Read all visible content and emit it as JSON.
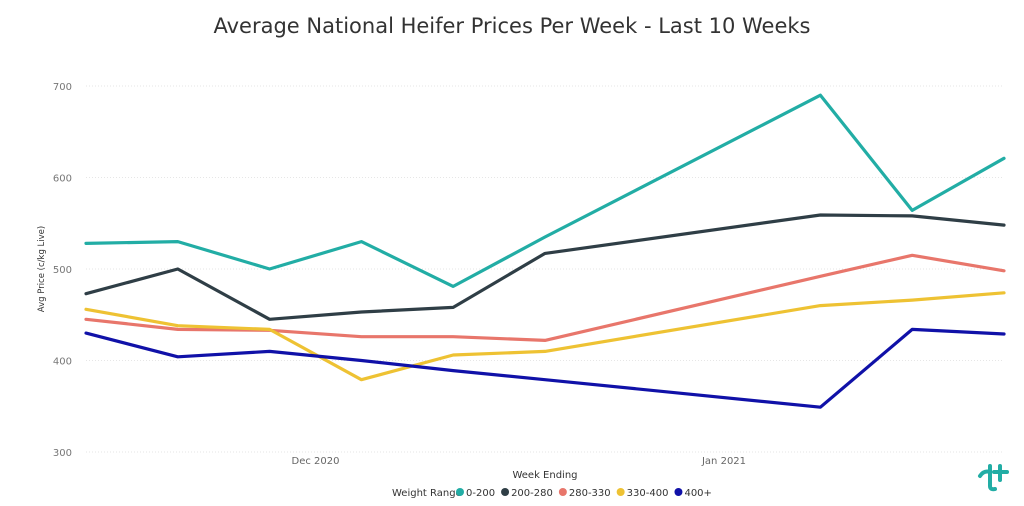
{
  "chart_data": {
    "type": "line",
    "title": "Average National Heifer Prices Per Week - Last 10 Weeks",
    "xlabel": "Week Ending",
    "ylabel": "Avg Price (c/kg Live)",
    "ylim": [
      300,
      700
    ],
    "yticks": [
      "700",
      "600",
      "500",
      "400",
      "300"
    ],
    "xticks": [
      {
        "label": "Dec 2020",
        "x": 2.5
      },
      {
        "label": "Jan 2021",
        "x": 6.95
      }
    ],
    "grid": true,
    "legend_title": "Weight Range",
    "legend_position": "bottom",
    "x": [
      0,
      1,
      2,
      3,
      4,
      5,
      6,
      7,
      8,
      9,
      10
    ],
    "series": [
      {
        "name": "0-200",
        "color": "#22ADA5",
        "points": [
          [
            0,
            528
          ],
          [
            1,
            530
          ],
          [
            2,
            500
          ],
          [
            3,
            530
          ],
          [
            4,
            481
          ],
          [
            5,
            535
          ],
          [
            8,
            690
          ],
          [
            9,
            564
          ],
          [
            10,
            621
          ]
        ]
      },
      {
        "name": "200-280",
        "color": "#2F3E46",
        "points": [
          [
            0,
            473
          ],
          [
            1,
            500
          ],
          [
            2,
            445
          ],
          [
            3,
            453
          ],
          [
            4,
            458
          ],
          [
            5,
            517
          ],
          [
            8,
            559
          ],
          [
            9,
            558
          ],
          [
            10,
            548
          ]
        ]
      },
      {
        "name": "280-330",
        "color": "#E8766B",
        "points": [
          [
            0,
            445
          ],
          [
            1,
            434
          ],
          [
            2,
            433
          ],
          [
            3,
            426
          ],
          [
            4,
            426
          ],
          [
            5,
            422
          ],
          [
            8,
            492
          ],
          [
            9,
            515
          ],
          [
            10,
            498
          ]
        ]
      },
      {
        "name": "330-400",
        "color": "#EEC233",
        "points": [
          [
            0,
            456
          ],
          [
            1,
            438
          ],
          [
            2,
            434
          ],
          [
            3,
            379
          ],
          [
            4,
            406
          ],
          [
            5,
            410
          ],
          [
            8,
            460
          ],
          [
            9,
            466
          ],
          [
            10,
            474
          ]
        ]
      },
      {
        "name": "400+",
        "color": "#1011A8",
        "points": [
          [
            0,
            430
          ],
          [
            1,
            404
          ],
          [
            2,
            410
          ],
          [
            3,
            400
          ],
          [
            4,
            389
          ],
          [
            5,
            379
          ],
          [
            8,
            349
          ],
          [
            9,
            434
          ],
          [
            10,
            429
          ]
        ]
      }
    ]
  },
  "logo_icon": "brand-logo-icon"
}
